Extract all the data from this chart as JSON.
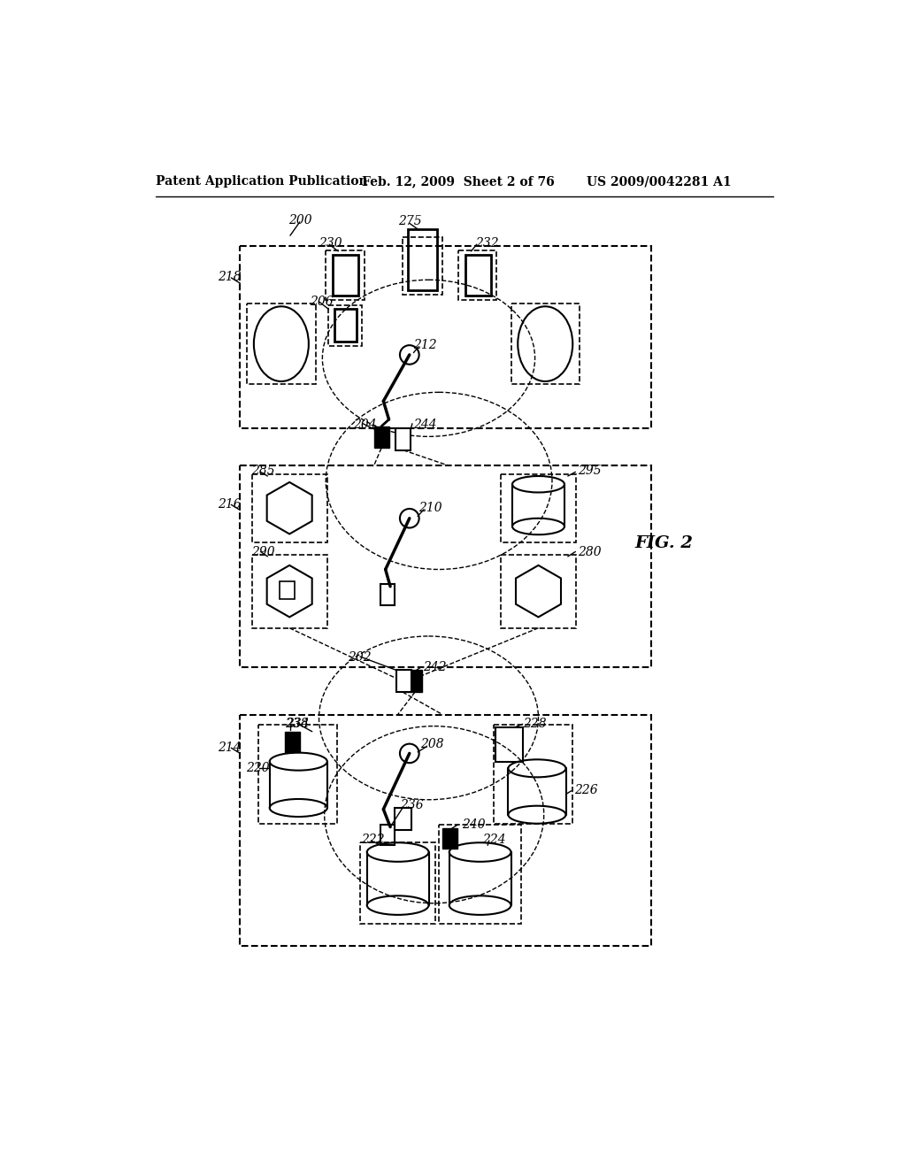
{
  "bg_color": "#ffffff",
  "header_left": "Patent Application Publication",
  "header_mid": "Feb. 12, 2009  Sheet 2 of 76",
  "header_right": "US 2009/0042281 A1",
  "fig_label": "FIG. 2"
}
